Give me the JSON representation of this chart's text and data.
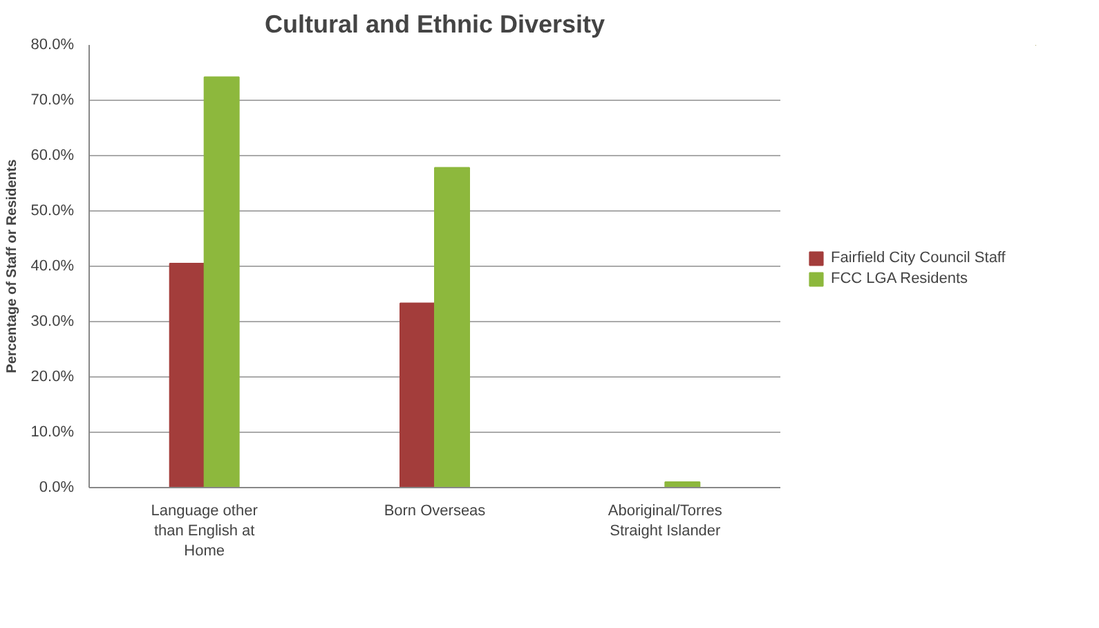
{
  "chart_data": {
    "type": "bar",
    "title": "Cultural and Ethnic Diversity",
    "ylabel": "Percentage of Staff or Residents",
    "categories": [
      "Language other\nthan English at\nHome",
      "Born Overseas",
      "Aboriginal/Torres\nStraight Islander"
    ],
    "series": [
      {
        "name": "Fairfield City Council Staff",
        "color": "#a33d3b",
        "values": [
          40.5,
          33.3,
          0
        ]
      },
      {
        "name": "FCC LGA Residents",
        "color": "#8db83d",
        "values": [
          74.2,
          57.8,
          1.0
        ]
      }
    ],
    "ylim": [
      0,
      80
    ],
    "yticks": [
      {
        "value": 0,
        "label": "0.0%"
      },
      {
        "value": 10,
        "label": "10.0%"
      },
      {
        "value": 20,
        "label": "20.0%"
      },
      {
        "value": 30,
        "label": "30.0%"
      },
      {
        "value": 40,
        "label": "40.0%"
      },
      {
        "value": 50,
        "label": "50.0%"
      },
      {
        "value": 60,
        "label": "60.0%"
      },
      {
        "value": 70,
        "label": "70.0%"
      },
      {
        "value": 80,
        "label": "80.0%"
      }
    ],
    "grid": "y",
    "legend": "right"
  }
}
